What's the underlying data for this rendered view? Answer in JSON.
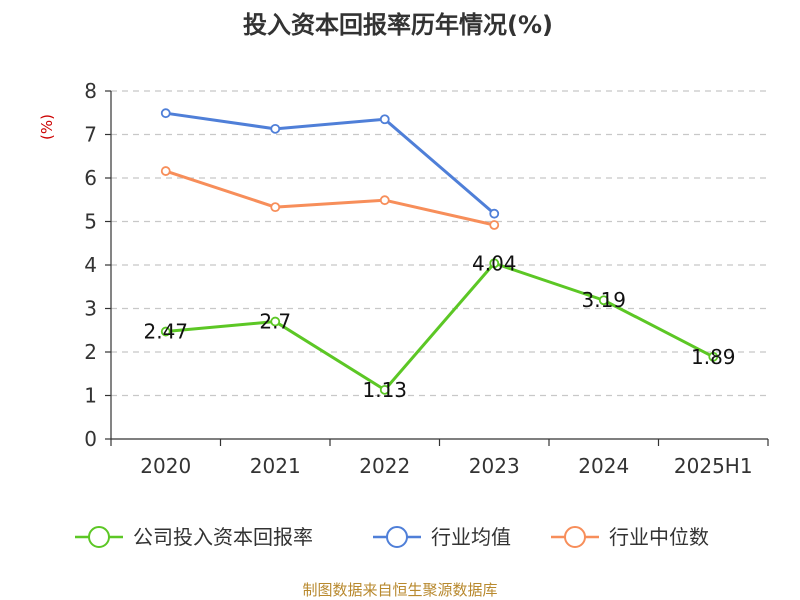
{
  "chart_data": {
    "type": "line",
    "title": "投入资本回报率历年情况(%)",
    "ylabel": "(%)",
    "categories": [
      "2020",
      "2021",
      "2022",
      "2023",
      "2024",
      "2025H1"
    ],
    "ylim": [
      0,
      8
    ],
    "yticks": [
      0,
      1,
      2,
      3,
      4,
      5,
      6,
      7,
      8
    ],
    "grid": true,
    "legend_position": "bottom",
    "series": [
      {
        "name": "公司投入资本回报率",
        "color": "#5cc725",
        "values": [
          2.47,
          2.7,
          1.13,
          4.04,
          3.19,
          1.89
        ],
        "labels": [
          "2.47",
          "2.7",
          "1.13",
          "4.04",
          "3.19",
          "1.89"
        ]
      },
      {
        "name": "行业均值",
        "color": "#4f7fd8",
        "values": [
          7.49,
          7.13,
          7.35,
          5.18,
          null,
          null
        ]
      },
      {
        "name": "行业中位数",
        "color": "#f78e5a",
        "values": [
          6.16,
          5.33,
          5.49,
          4.92,
          null,
          null
        ]
      }
    ]
  },
  "ylabel_color": "#cc0000",
  "source": {
    "text": "制图数据来自恒生聚源数据库",
    "color": "#b8892e"
  }
}
